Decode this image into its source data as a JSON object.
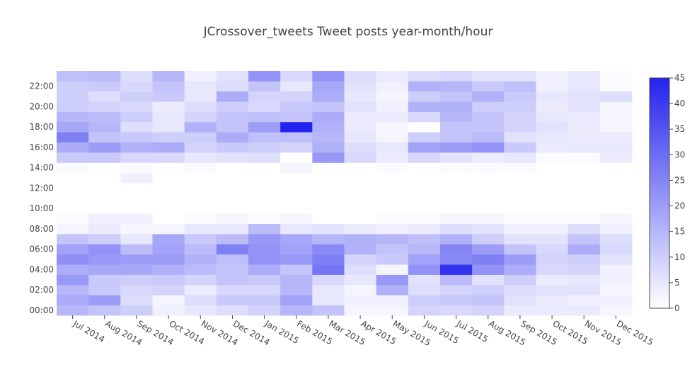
{
  "chart_data": {
    "type": "heatmap",
    "title": "JCrossover_tweets Tweet posts year-month/hour",
    "x_labels": [
      "Jul 2014",
      "Aug 2014",
      "Sep 2014",
      "Oct 2014",
      "Nov 2014",
      "Dec 2014",
      "Jan 2015",
      "Feb 2015",
      "Mar 2015",
      "Apr 2015",
      "May 2015",
      "Jun 2015",
      "Jul 2015",
      "Aug 2015",
      "Sep 2015",
      "Oct 2015",
      "Nov 2015",
      "Dec 2015"
    ],
    "y_ticks": [
      {
        "value": 0,
        "label": "00:00"
      },
      {
        "value": 2,
        "label": "02:00"
      },
      {
        "value": 4,
        "label": "04:00"
      },
      {
        "value": 6,
        "label": "06:00"
      },
      {
        "value": 8,
        "label": "08:00"
      },
      {
        "value": 10,
        "label": "10:00"
      },
      {
        "value": 12,
        "label": "12:00"
      },
      {
        "value": 14,
        "label": "14:00"
      },
      {
        "value": 16,
        "label": "16:00"
      },
      {
        "value": 18,
        "label": "18:00"
      },
      {
        "value": 20,
        "label": "20:00"
      },
      {
        "value": 22,
        "label": "22:00"
      }
    ],
    "hours": [
      0,
      1,
      2,
      3,
      4,
      5,
      6,
      7,
      8,
      9,
      10,
      11,
      12,
      13,
      14,
      15,
      16,
      17,
      18,
      19,
      20,
      21,
      22,
      23
    ],
    "z_by_month": [
      [
        15,
        17,
        15,
        21,
        17,
        23,
        19,
        12,
        2,
        1,
        0,
        0,
        0,
        0,
        1,
        11,
        17,
        26,
        18,
        15,
        10,
        10,
        10,
        13
      ],
      [
        12,
        20,
        11,
        11,
        18,
        21,
        22,
        10,
        4,
        3,
        0,
        0,
        0,
        0,
        0,
        11,
        20,
        12,
        15,
        14,
        9,
        7,
        11,
        14
      ],
      [
        10,
        7,
        8,
        10,
        18,
        20,
        14,
        5,
        2,
        3,
        0,
        0,
        0,
        3,
        1,
        8,
        16,
        11,
        7,
        10,
        8,
        10,
        8,
        7
      ],
      [
        3,
        2,
        9,
        11,
        16,
        20,
        19,
        18,
        2,
        0,
        0,
        0,
        0,
        0,
        0,
        8,
        17,
        10,
        5,
        5,
        4,
        11,
        12,
        15
      ],
      [
        5,
        7,
        4,
        9,
        14,
        16,
        14,
        11,
        5,
        1,
        0,
        0,
        0,
        0,
        1,
        5,
        9,
        10,
        16,
        9,
        7,
        5,
        5,
        3
      ],
      [
        7,
        11,
        8,
        12,
        12,
        13,
        26,
        14,
        5,
        2,
        0,
        0,
        0,
        0,
        0,
        6,
        11,
        17,
        12,
        12,
        10,
        17,
        7,
        6
      ],
      [
        9,
        11,
        8,
        11,
        17,
        22,
        22,
        21,
        14,
        1,
        0,
        0,
        0,
        0,
        0,
        7,
        10,
        13,
        20,
        13,
        8,
        9,
        12,
        22
      ],
      [
        15,
        19,
        15,
        15,
        12,
        21,
        19,
        18,
        5,
        2,
        0,
        0,
        0,
        0,
        2,
        0,
        9,
        13,
        45,
        12,
        11,
        9,
        5,
        8
      ],
      [
        12,
        5,
        5,
        8,
        28,
        26,
        24,
        15,
        6,
        0,
        0,
        0,
        0,
        0,
        0,
        21,
        16,
        15,
        16,
        17,
        12,
        17,
        18,
        22
      ],
      [
        2,
        3,
        2,
        5,
        7,
        9,
        16,
        16,
        4,
        0,
        0,
        0,
        0,
        0,
        0,
        8,
        7,
        5,
        4,
        4,
        6,
        5,
        6,
        7
      ],
      [
        2,
        3,
        16,
        21,
        2,
        11,
        12,
        15,
        3,
        1,
        0,
        0,
        0,
        0,
        1,
        4,
        5,
        2,
        2,
        4,
        3,
        2,
        3,
        4
      ],
      [
        9,
        10,
        7,
        6,
        22,
        19,
        15,
        13,
        4,
        1,
        0,
        0,
        0,
        0,
        0,
        8,
        19,
        10,
        0,
        8,
        16,
        10,
        16,
        7
      ],
      [
        8,
        11,
        9,
        14,
        42,
        24,
        25,
        16,
        7,
        2,
        0,
        0,
        0,
        0,
        1,
        6,
        20,
        12,
        12,
        15,
        16,
        12,
        15,
        8
      ],
      [
        9,
        12,
        10,
        6,
        22,
        26,
        20,
        10,
        6,
        2,
        0,
        0,
        0,
        0,
        1,
        4,
        22,
        14,
        12,
        12,
        10,
        16,
        11,
        6
      ],
      [
        4,
        6,
        7,
        10,
        17,
        20,
        12,
        6,
        3,
        1,
        0,
        0,
        0,
        0,
        1,
        5,
        11,
        6,
        9,
        9,
        10,
        11,
        13,
        6
      ],
      [
        4,
        4,
        6,
        4,
        8,
        9,
        8,
        6,
        3,
        1,
        0,
        0,
        0,
        0,
        0,
        1,
        4,
        5,
        6,
        5,
        4,
        5,
        3,
        3
      ],
      [
        4,
        3,
        6,
        5,
        9,
        10,
        17,
        12,
        7,
        1,
        0,
        0,
        0,
        0,
        0,
        1,
        5,
        4,
        4,
        4,
        6,
        6,
        5,
        5
      ],
      [
        2,
        3,
        2,
        3,
        3,
        6,
        8,
        7,
        3,
        2,
        0,
        0,
        0,
        0,
        0,
        4,
        5,
        4,
        2,
        2,
        2,
        7,
        1,
        1
      ]
    ],
    "zmin": 0,
    "zmax": 45,
    "colorscale": [
      "#ffffff",
      "#2323ee"
    ],
    "colorbar_ticks": [
      0,
      5,
      10,
      15,
      20,
      25,
      30,
      35,
      40,
      45
    ],
    "grid": false,
    "legend": "right colorbar"
  }
}
